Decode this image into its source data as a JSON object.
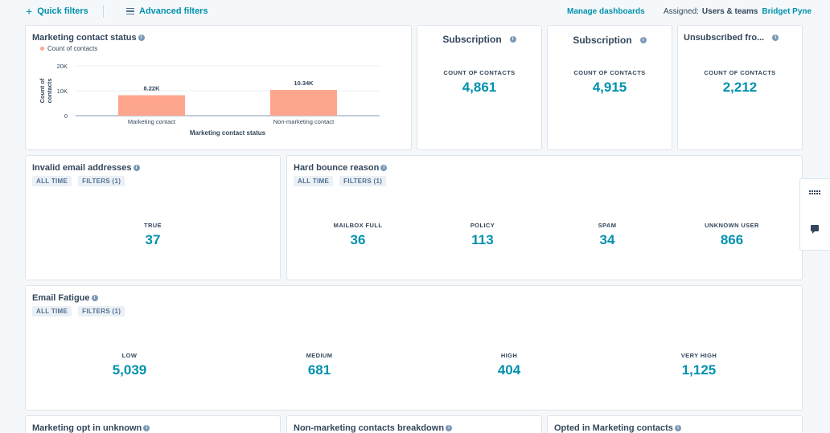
{
  "topbar": {
    "quick_filters": "Quick filters",
    "advanced_filters": "Advanced filters",
    "manage_dashboards": "Manage dashboards",
    "assigned_label": "Assigned:",
    "assigned_value": "Users & teams",
    "assigned_user": "Bridget Pyne"
  },
  "marketing_status": {
    "title": "Marketing contact status",
    "legend": "Count of contacts",
    "chart_data": {
      "type": "bar",
      "categories": [
        "Marketing contact",
        "Non-marketing contact"
      ],
      "values": [
        8220,
        10340
      ],
      "data_labels": [
        "8.22K",
        "10.34K"
      ],
      "yticks": [
        "0",
        "10K",
        "20K"
      ],
      "ylim": [
        0,
        20000
      ],
      "xlabel": "Marketing contact status",
      "ylabel": "Count of contacts",
      "legend_position": "top-left",
      "bar_color": "#fea58e"
    }
  },
  "subscription1": {
    "title": "Subscription",
    "label": "COUNT OF CONTACTS",
    "value": "4,861"
  },
  "subscription2": {
    "title": "Subscription",
    "label": "COUNT OF CONTACTS",
    "value": "4,915"
  },
  "unsubscribed": {
    "title": "Unsubscribed fro...",
    "label": "COUNT OF CONTACTS",
    "value": "2,212"
  },
  "invalid_email": {
    "title": "Invalid email addresses",
    "tags": [
      "ALL TIME",
      "FILTERS (1)"
    ],
    "metrics": [
      {
        "label": "TRUE",
        "value": "37"
      }
    ]
  },
  "hard_bounce": {
    "title": "Hard bounce reason",
    "tags": [
      "ALL TIME",
      "FILTERS (1)"
    ],
    "metrics": [
      {
        "label": "MAILBOX FULL",
        "value": "36"
      },
      {
        "label": "POLICY",
        "value": "113"
      },
      {
        "label": "SPAM",
        "value": "34"
      },
      {
        "label": "UNKNOWN USER",
        "value": "866"
      }
    ]
  },
  "email_fatigue": {
    "title": "Email Fatigue",
    "tags": [
      "ALL TIME",
      "FILTERS (1)"
    ],
    "metrics": [
      {
        "label": "LOW",
        "value": "5,039"
      },
      {
        "label": "MEDIUM",
        "value": "681"
      },
      {
        "label": "HIGH",
        "value": "404"
      },
      {
        "label": "VERY HIGH",
        "value": "1,125"
      }
    ]
  },
  "bottom_cards": [
    {
      "title": "Marketing opt in unknown"
    },
    {
      "title": "Non-marketing contacts breakdown"
    },
    {
      "title": "Opted in Marketing contacts"
    }
  ]
}
